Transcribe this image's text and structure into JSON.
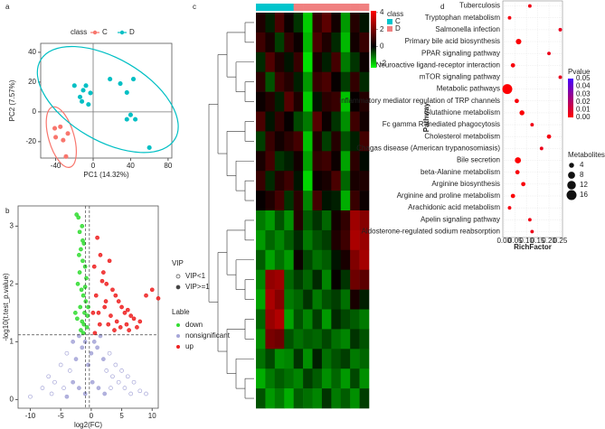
{
  "panel_labels": [
    "a",
    "b",
    "c",
    "d"
  ],
  "chart_data": [
    {
      "type": "scatter",
      "legend_title": "class",
      "legend_position": "top",
      "xlabel": "PC1 (14.32%)",
      "ylabel": "PC2 (7.57%)",
      "xlim": [
        -56,
        84
      ],
      "ylim": [
        -31,
        46
      ],
      "xticks": [
        -40,
        0,
        40,
        80
      ],
      "yticks": [
        -20,
        0,
        20,
        40
      ],
      "zero_lines": true,
      "ellipses": true,
      "series": [
        {
          "name": "C",
          "color": "#F8766D",
          "x": [
            -41,
            -35,
            -40,
            -27,
            -32,
            -29
          ],
          "values": [
            -11,
            -10,
            -17,
            -14.5,
            -19,
            -30
          ]
        },
        {
          "name": "D",
          "color": "#00BFC4",
          "x": [
            -7.7,
            -10.6,
            -2.9,
            -14,
            -12,
            18,
            29,
            43,
            36,
            40,
            36,
            45,
            60,
            -5,
            -20
          ],
          "values": [
            17.6,
            14.5,
            12.7,
            10,
            7,
            22,
            19,
            22,
            13,
            -2,
            -5,
            -5,
            -24,
            5,
            17.6
          ]
        }
      ]
    },
    {
      "type": "scatter",
      "legend_position": "right",
      "legend_vip_title": "VIP",
      "vip_labels": [
        "VIP<1",
        "VIP>=1"
      ],
      "legend_title": "Lable",
      "xlabel": "log2(FC)",
      "ylabel": "-log10(t.test_p.value)",
      "xlim": [
        -12,
        11
      ],
      "ylim": [
        -0.15,
        3.35
      ],
      "xticks": [
        -10,
        -5,
        0,
        5,
        10
      ],
      "yticks": [
        0,
        1,
        2,
        3
      ],
      "hline": 1.12,
      "vlines": [
        -0.92,
        -0.3
      ],
      "series": [
        {
          "name": "down",
          "color": "#33dd33",
          "x": [
            -2.4,
            -2.1,
            -1.9,
            -1.5,
            -1.2,
            -2.0,
            -1.7,
            -1.4,
            -1.0,
            -0.8,
            -2.2,
            -1.6,
            -1.3,
            -0.9,
            -1.8,
            -1.1,
            -0.6,
            -2.3,
            -1.5,
            -1.2,
            -0.7,
            -1.9,
            -1.0,
            -1.4,
            -2.6,
            -0.5,
            -1.7,
            -1.3
          ],
          "values": [
            3.2,
            3.15,
            2.9,
            3.0,
            2.7,
            2.5,
            2.6,
            2.4,
            2.3,
            2.1,
            2.0,
            1.9,
            1.8,
            1.7,
            1.6,
            1.5,
            1.45,
            1.4,
            1.35,
            1.3,
            1.25,
            2.2,
            1.95,
            2.75,
            1.5,
            1.6,
            1.2,
            1.15
          ]
        },
        {
          "name": "nonsignificant",
          "color": "#a6a6d8",
          "x": [
            -10,
            -8,
            -7,
            -6,
            -5,
            -4.5,
            -4,
            -3.5,
            -3,
            -2.5,
            -2,
            -1.5,
            -1,
            -0.5,
            0,
            0.5,
            1,
            1.5,
            2,
            2.5,
            3,
            3.5,
            4,
            4.5,
            5,
            5.5,
            6,
            7,
            8,
            9,
            -3,
            -2,
            -1,
            0.2,
            1.2,
            2.2,
            3.2,
            -6.5,
            -4,
            6.5
          ],
          "values": [
            0.05,
            0.2,
            0.4,
            0.3,
            0.6,
            0.2,
            0.8,
            0.5,
            1.0,
            0.7,
            1.1,
            0.9,
            1.0,
            0.6,
            0.8,
            1.0,
            0.9,
            1.1,
            0.7,
            0.5,
            0.8,
            0.4,
            0.6,
            0.3,
            0.5,
            0.2,
            0.4,
            0.3,
            0.15,
            0.1,
            0.3,
            0.2,
            0.1,
            0.3,
            0.2,
            0.1,
            0.2,
            0.1,
            0.05,
            0.1
          ],
          "vip": [
            0,
            0,
            0,
            0,
            0,
            0,
            0,
            0,
            1,
            1,
            1,
            1,
            1,
            1,
            1,
            1,
            1,
            1,
            1,
            0,
            0,
            0,
            0,
            0,
            0,
            0,
            0,
            0,
            0,
            0,
            1,
            1,
            1,
            1,
            1,
            1,
            0,
            0,
            1,
            0
          ]
        },
        {
          "name": "up",
          "color": "#ee2222",
          "x": [
            0.5,
            1.0,
            1.5,
            2.0,
            2.5,
            3.0,
            3.5,
            4.0,
            4.5,
            5.0,
            5.5,
            6.0,
            6.5,
            7.0,
            8.0,
            9.0,
            10.0,
            11.0,
            1.2,
            2.2,
            3.2,
            4.2,
            0.8,
            1.8,
            2.8,
            3.8,
            4.8,
            5.8,
            0.3,
            1.4,
            2.4,
            6.2,
            7.5,
            0.6
          ],
          "values": [
            2.3,
            2.8,
            2.5,
            2.2,
            2.0,
            2.4,
            1.9,
            1.8,
            1.7,
            1.6,
            1.5,
            1.55,
            1.45,
            1.4,
            1.35,
            1.8,
            1.9,
            1.75,
            1.5,
            1.6,
            1.45,
            1.35,
            1.8,
            2.05,
            1.3,
            1.2,
            1.25,
            1.3,
            1.5,
            1.3,
            1.7,
            1.2,
            1.25,
            1.15
          ]
        }
      ]
    },
    {
      "type": "heatmap",
      "legend_title": "class",
      "classes": [
        {
          "name": "C",
          "color": "#00C5CD"
        },
        {
          "name": "D",
          "color": "#F08080"
        }
      ],
      "column_classes": [
        "C",
        "C",
        "C",
        "C",
        "D",
        "D",
        "D",
        "D",
        "D",
        "D",
        "D",
        "D"
      ],
      "zlim": [
        -2.5,
        4.2
      ],
      "zticks": [
        4,
        2,
        0,
        -2
      ],
      "colors": [
        "#00ff00",
        "#000000",
        "#ff0000"
      ],
      "matrix": [
        [
          0.5,
          -0.3,
          1.2,
          0.2,
          -0.5,
          -2,
          0.8,
          1.5,
          0.3,
          -1.5,
          0.6,
          -0.2
        ],
        [
          1.0,
          0.4,
          -0.6,
          0.8,
          0.2,
          -1.8,
          1.2,
          0.5,
          -0.4,
          -1.8,
          0.3,
          0.9
        ],
        [
          -0.4,
          1.3,
          0.5,
          -0.2,
          0.9,
          -2.2,
          0.4,
          -0.3,
          1.1,
          -1.2,
          -0.5,
          0.2
        ],
        [
          0.7,
          -0.8,
          1.0,
          0.6,
          -0.3,
          -1.5,
          0.9,
          1.2,
          0.1,
          -0.6,
          0.8,
          -0.4
        ],
        [
          0.2,
          0.6,
          -0.3,
          1.4,
          0.5,
          -2.0,
          -0.2,
          0.7,
          0.9,
          -1.9,
          0.1,
          0.6
        ],
        [
          1.2,
          -0.2,
          0.8,
          0.1,
          -0.7,
          -1.2,
          1.4,
          0.2,
          -0.5,
          -1.4,
          1.0,
          0.3
        ],
        [
          -0.6,
          0.9,
          0.3,
          0.7,
          1.1,
          -1.9,
          0.5,
          -0.6,
          0.6,
          -0.8,
          -0.3,
          1.1
        ],
        [
          0.4,
          1.1,
          -0.5,
          -0.3,
          0.3,
          -1.6,
          0.8,
          1.0,
          0.2,
          -1.6,
          0.7,
          -0.1
        ],
        [
          0.9,
          -0.4,
          0.6,
          1.0,
          -0.2,
          -2.1,
          0.2,
          0.4,
          1.2,
          -1.0,
          0.4,
          0.5
        ],
        [
          0.1,
          0.5,
          1.1,
          -0.5,
          0.7,
          -1.3,
          1.1,
          -0.2,
          -0.3,
          -1.7,
          0.9,
          0.2
        ],
        [
          -1.2,
          -1.5,
          -0.8,
          -1.4,
          0.6,
          -0.9,
          -0.5,
          -1.0,
          0.3,
          0.8,
          2.6,
          2.2
        ],
        [
          -1.5,
          -1.0,
          -1.3,
          -0.9,
          -0.4,
          -1.2,
          -0.8,
          -0.6,
          0.5,
          1.0,
          2.8,
          2.5
        ],
        [
          -0.9,
          -1.6,
          -1.1,
          -1.5,
          0.2,
          -0.7,
          -1.1,
          -0.9,
          -0.2,
          0.4,
          2.1,
          2.7
        ],
        [
          -1.3,
          2.4,
          2.6,
          -1.0,
          -0.6,
          -1.0,
          -0.4,
          -1.3,
          0.1,
          -0.5,
          1.8,
          1.5
        ],
        [
          -1.6,
          2.8,
          2.2,
          -1.2,
          -1.0,
          -0.5,
          -1.2,
          -0.8,
          -0.6,
          -1.1,
          0.4,
          -0.3
        ],
        [
          -1.0,
          2.5,
          2.9,
          -1.6,
          -0.8,
          -1.3,
          -0.6,
          -1.5,
          -0.4,
          -0.7,
          -0.9,
          -1.2
        ],
        [
          -1.4,
          2.0,
          1.8,
          -0.8,
          -1.1,
          -0.9,
          -1.0,
          -0.7,
          -1.1,
          -1.3,
          -0.5,
          -0.8
        ],
        [
          -1.1,
          -0.7,
          -1.4,
          -1.3,
          -0.5,
          -1.4,
          -0.3,
          -1.1,
          -0.8,
          -0.6,
          -1.2,
          -1.0
        ],
        [
          -1.7,
          -1.2,
          -0.9,
          -1.1,
          -1.3,
          -0.6,
          -0.9,
          -1.4,
          -1.0,
          -1.5,
          -0.7,
          -1.4
        ],
        [
          -0.8,
          -1.5,
          -1.2,
          -1.7,
          -0.9,
          -1.1,
          -1.3,
          -0.5,
          -1.2,
          -0.9,
          -1.4,
          -0.6
        ]
      ]
    },
    {
      "type": "bubble",
      "xlabel": "RichFactor",
      "ylabel": "Pathway",
      "categories": [
        "Tuberculosis",
        "Tryptophan metabolism",
        "Salmonella infection",
        "Primary bile acid biosynthesis",
        "PPAR signaling pathway",
        "Neuroactive ligand-receptor interaction",
        "mTOR signaling pathway",
        "Metabolic pathways",
        "Inflammatory mediator regulation of TRP channels",
        "Glutathione metabolism",
        "Fc gamma R-mediated phagocytosis",
        "Cholesterol metabolism",
        "Chagas disease (American trypanosomiasis)",
        "Bile secretion",
        "beta-Alanine metabolism",
        "Arginine biosynthesis",
        "Arginine and proline metabolism",
        "Arachidonic acid metabolism",
        "Apelin signaling pathway",
        "Aldosterone-regulated sodium reabsorption"
      ],
      "values": [
        0.115,
        0.025,
        0.25,
        0.065,
        0.2,
        0.04,
        0.25,
        0.015,
        0.057,
        0.08,
        0.125,
        0.2,
        0.167,
        0.062,
        0.06,
        0.086,
        0.04,
        0.025,
        0.115,
        0.125
      ],
      "sizes": [
        2,
        2,
        2,
        5,
        2,
        3,
        2,
        16,
        3,
        4,
        2,
        3,
        2,
        6,
        3,
        3,
        3,
        2,
        2,
        2
      ],
      "pvalues": [
        0.004,
        0.003,
        0.006,
        0.001,
        0.005,
        0.002,
        0.006,
        0.0005,
        0.002,
        0.001,
        0.004,
        0.003,
        0.005,
        0.0003,
        0.002,
        0.002,
        0.001,
        0.003,
        0.004,
        0.005
      ],
      "xlim": [
        -0.005,
        0.26
      ],
      "xticks": [
        {
          "value": 0,
          "label": "0.00"
        },
        {
          "value": 0.05,
          "label": "0.05"
        },
        {
          "value": 0.1,
          "label": "0.10"
        },
        {
          "value": 0.15,
          "label": "0.15"
        },
        {
          "value": 0.2,
          "label": "0.20"
        },
        {
          "value": 0.25,
          "label": "0.25"
        }
      ],
      "color_title": "Pvalue",
      "clim": [
        0,
        0.05
      ],
      "colormap": [
        "#ff0000",
        "#4400ff"
      ],
      "cticks": [
        {
          "value": 0.05,
          "label": "0.05"
        },
        {
          "value": 0.04,
          "label": "0.04"
        },
        {
          "value": 0.03,
          "label": "0.03"
        },
        {
          "value": 0.02,
          "label": "0.02"
        },
        {
          "value": 0.01,
          "label": "0.01"
        },
        {
          "value": 0,
          "label": "0.00"
        }
      ],
      "size_title": "MetabolitesNumber",
      "size_ticks": [
        4,
        8,
        12,
        16
      ],
      "grid": true
    }
  ]
}
